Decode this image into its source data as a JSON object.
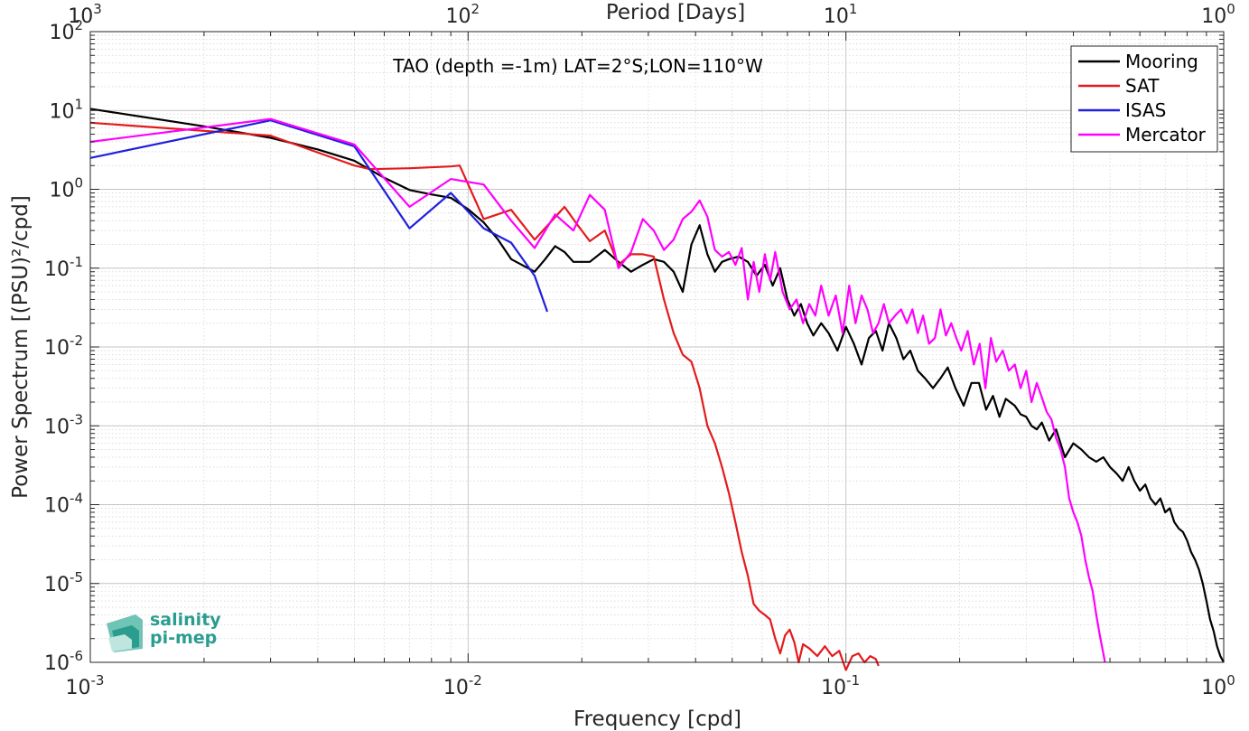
{
  "chart_data": {
    "type": "line",
    "title": "TAO (depth =-1m) LAT=2°S;LON=110°W",
    "xlabel": "Frequency [cpd]",
    "ylabel": "Power Spectrum [(PSU)²/cpd]",
    "top_xlabel": "Period [Days]",
    "x_scale": "log",
    "y_scale": "log",
    "xlim": [
      0.001,
      1
    ],
    "ylim": [
      1e-06,
      100
    ],
    "grid": true,
    "minor_grid": true,
    "legend_position": "top-right",
    "x_ticks": [
      {
        "base": "10",
        "exp": "-3"
      },
      {
        "base": "10",
        "exp": "-2"
      },
      {
        "base": "10",
        "exp": "-1"
      },
      {
        "base": "10",
        "exp": "0"
      }
    ],
    "top_ticks": [
      {
        "base": "10",
        "exp": "3"
      },
      {
        "base": "10",
        "exp": "2"
      },
      {
        "base": "10",
        "exp": "1"
      },
      {
        "base": "10",
        "exp": "0"
      }
    ],
    "y_ticks": [
      {
        "base": "10",
        "exp": "2"
      },
      {
        "base": "10",
        "exp": "1"
      },
      {
        "base": "10",
        "exp": "0"
      },
      {
        "base": "10",
        "exp": "-1"
      },
      {
        "base": "10",
        "exp": "-2"
      },
      {
        "base": "10",
        "exp": "-3"
      },
      {
        "base": "10",
        "exp": "-4"
      },
      {
        "base": "10",
        "exp": "-5"
      },
      {
        "base": "10",
        "exp": "-6"
      }
    ],
    "series": [
      {
        "name": "Mooring",
        "color": "#000000",
        "points": [
          [
            0.001,
            10.5
          ],
          [
            0.002,
            6.3
          ],
          [
            0.003,
            4.5
          ],
          [
            0.004,
            3.2
          ],
          [
            0.005,
            2.3
          ],
          [
            0.006,
            1.4
          ],
          [
            0.007,
            0.98
          ],
          [
            0.008,
            0.86
          ],
          [
            0.009,
            0.78
          ],
          [
            0.01,
            0.56
          ],
          [
            0.011,
            0.38
          ],
          [
            0.012,
            0.23
          ],
          [
            0.013,
            0.13
          ],
          [
            0.015,
            0.09
          ],
          [
            0.016,
            0.13
          ],
          [
            0.017,
            0.19
          ],
          [
            0.018,
            0.16
          ],
          [
            0.019,
            0.12
          ],
          [
            0.021,
            0.12
          ],
          [
            0.023,
            0.17
          ],
          [
            0.025,
            0.12
          ],
          [
            0.027,
            0.09
          ],
          [
            0.029,
            0.11
          ],
          [
            0.031,
            0.13
          ],
          [
            0.033,
            0.12
          ],
          [
            0.035,
            0.09
          ],
          [
            0.037,
            0.05
          ],
          [
            0.039,
            0.2
          ],
          [
            0.041,
            0.35
          ],
          [
            0.043,
            0.15
          ],
          [
            0.045,
            0.09
          ],
          [
            0.047,
            0.12
          ],
          [
            0.049,
            0.13
          ],
          [
            0.052,
            0.14
          ],
          [
            0.055,
            0.12
          ],
          [
            0.058,
            0.08
          ],
          [
            0.061,
            0.11
          ],
          [
            0.064,
            0.06
          ],
          [
            0.067,
            0.1
          ],
          [
            0.07,
            0.04
          ],
          [
            0.073,
            0.025
          ],
          [
            0.076,
            0.035
          ],
          [
            0.079,
            0.02
          ],
          [
            0.082,
            0.014
          ],
          [
            0.086,
            0.02
          ],
          [
            0.09,
            0.015
          ],
          [
            0.095,
            0.009
          ],
          [
            0.1,
            0.018
          ],
          [
            0.105,
            0.011
          ],
          [
            0.11,
            0.006
          ],
          [
            0.115,
            0.013
          ],
          [
            0.12,
            0.016
          ],
          [
            0.125,
            0.009
          ],
          [
            0.13,
            0.02
          ],
          [
            0.136,
            0.013
          ],
          [
            0.142,
            0.007
          ],
          [
            0.148,
            0.009
          ],
          [
            0.155,
            0.005
          ],
          [
            0.162,
            0.004
          ],
          [
            0.17,
            0.003
          ],
          [
            0.178,
            0.004
          ],
          [
            0.186,
            0.0055
          ],
          [
            0.195,
            0.003
          ],
          [
            0.205,
            0.0018
          ],
          [
            0.215,
            0.0035
          ],
          [
            0.225,
            0.0035
          ],
          [
            0.235,
            0.0016
          ],
          [
            0.245,
            0.0024
          ],
          [
            0.255,
            0.0013
          ],
          [
            0.265,
            0.0022
          ],
          [
            0.28,
            0.0018
          ],
          [
            0.29,
            0.0014
          ],
          [
            0.3,
            0.0013
          ],
          [
            0.31,
            0.001
          ],
          [
            0.32,
            0.0009
          ],
          [
            0.33,
            0.0011
          ],
          [
            0.345,
            0.00065
          ],
          [
            0.36,
            0.0009
          ],
          [
            0.38,
            0.0004
          ],
          [
            0.4,
            0.0006
          ],
          [
            0.42,
            0.0005
          ],
          [
            0.44,
            0.0004
          ],
          [
            0.46,
            0.00035
          ],
          [
            0.48,
            0.0004
          ],
          [
            0.5,
            0.0003
          ],
          [
            0.52,
            0.00025
          ],
          [
            0.54,
            0.0002
          ],
          [
            0.56,
            0.0003
          ],
          [
            0.58,
            0.0002
          ],
          [
            0.6,
            0.00015
          ],
          [
            0.62,
            0.00018
          ],
          [
            0.64,
            0.00012
          ],
          [
            0.66,
            0.0001
          ],
          [
            0.68,
            0.00012
          ],
          [
            0.7,
            8e-05
          ],
          [
            0.72,
            9e-05
          ],
          [
            0.74,
            6e-05
          ],
          [
            0.76,
            5e-05
          ],
          [
            0.78,
            4.5e-05
          ],
          [
            0.8,
            3.5e-05
          ],
          [
            0.82,
            2.5e-05
          ],
          [
            0.84,
            2e-05
          ],
          [
            0.86,
            1.5e-05
          ],
          [
            0.88,
            1e-05
          ],
          [
            0.9,
            6e-06
          ],
          [
            0.92,
            3.5e-06
          ],
          [
            0.94,
            2.5e-06
          ],
          [
            0.96,
            1.6e-06
          ],
          [
            0.98,
            1.2e-06
          ],
          [
            1.0,
            1e-06
          ]
        ]
      },
      {
        "name": "SAT",
        "color": "#e41a1c",
        "points": [
          [
            0.001,
            7.0
          ],
          [
            0.003,
            4.8
          ],
          [
            0.005,
            2.0
          ],
          [
            0.0055,
            1.8
          ],
          [
            0.007,
            1.85
          ],
          [
            0.009,
            1.95
          ],
          [
            0.0095,
            2.0
          ],
          [
            0.011,
            0.42
          ],
          [
            0.013,
            0.55
          ],
          [
            0.015,
            0.23
          ],
          [
            0.0165,
            0.38
          ],
          [
            0.018,
            0.6
          ],
          [
            0.0195,
            0.35
          ],
          [
            0.021,
            0.22
          ],
          [
            0.023,
            0.3
          ],
          [
            0.025,
            0.11
          ],
          [
            0.027,
            0.15
          ],
          [
            0.029,
            0.15
          ],
          [
            0.031,
            0.14
          ],
          [
            0.033,
            0.04
          ],
          [
            0.035,
            0.015
          ],
          [
            0.037,
            0.008
          ],
          [
            0.039,
            0.0065
          ],
          [
            0.041,
            0.003
          ],
          [
            0.043,
            0.001
          ],
          [
            0.045,
            0.0006
          ],
          [
            0.047,
            0.0003
          ],
          [
            0.049,
            0.00014
          ],
          [
            0.051,
            6e-05
          ],
          [
            0.053,
            2.5e-05
          ],
          [
            0.055,
            1.25e-05
          ],
          [
            0.057,
            5.5e-06
          ],
          [
            0.059,
            4.5e-06
          ],
          [
            0.061,
            4e-06
          ],
          [
            0.063,
            3.5e-06
          ],
          [
            0.065,
            2e-06
          ],
          [
            0.067,
            1.3e-06
          ],
          [
            0.069,
            2.2e-06
          ],
          [
            0.071,
            2.6e-06
          ],
          [
            0.073,
            1.8e-06
          ],
          [
            0.075,
            1e-06
          ],
          [
            0.077,
            1.7e-06
          ],
          [
            0.08,
            1.5e-06
          ],
          [
            0.084,
            1.2e-06
          ],
          [
            0.088,
            1.6e-06
          ],
          [
            0.092,
            1.2e-06
          ],
          [
            0.096,
            1.4e-06
          ],
          [
            0.1,
            8e-07
          ],
          [
            0.104,
            1.2e-06
          ],
          [
            0.108,
            1.3e-06
          ],
          [
            0.112,
            1e-06
          ],
          [
            0.116,
            1.2e-06
          ],
          [
            0.12,
            1.1e-06
          ],
          [
            0.122,
            9e-07
          ]
        ]
      },
      {
        "name": "ISAS",
        "color": "#1f1fdd",
        "points": [
          [
            0.001,
            2.5
          ],
          [
            0.003,
            7.5
          ],
          [
            0.005,
            3.5
          ],
          [
            0.007,
            0.32
          ],
          [
            0.009,
            0.9
          ],
          [
            0.011,
            0.32
          ],
          [
            0.013,
            0.21
          ],
          [
            0.015,
            0.08
          ],
          [
            0.0162,
            0.028
          ]
        ]
      },
      {
        "name": "Mercator",
        "color": "#ff00ff",
        "points": [
          [
            0.001,
            4.0
          ],
          [
            0.003,
            7.8
          ],
          [
            0.005,
            3.7
          ],
          [
            0.007,
            0.6
          ],
          [
            0.009,
            1.35
          ],
          [
            0.011,
            1.15
          ],
          [
            0.013,
            0.4
          ],
          [
            0.015,
            0.18
          ],
          [
            0.017,
            0.48
          ],
          [
            0.019,
            0.3
          ],
          [
            0.021,
            0.85
          ],
          [
            0.023,
            0.55
          ],
          [
            0.025,
            0.1
          ],
          [
            0.027,
            0.16
          ],
          [
            0.029,
            0.42
          ],
          [
            0.031,
            0.3
          ],
          [
            0.033,
            0.17
          ],
          [
            0.035,
            0.23
          ],
          [
            0.037,
            0.42
          ],
          [
            0.039,
            0.52
          ],
          [
            0.041,
            0.72
          ],
          [
            0.043,
            0.45
          ],
          [
            0.045,
            0.17
          ],
          [
            0.047,
            0.14
          ],
          [
            0.049,
            0.16
          ],
          [
            0.051,
            0.11
          ],
          [
            0.053,
            0.18
          ],
          [
            0.055,
            0.04
          ],
          [
            0.057,
            0.12
          ],
          [
            0.059,
            0.05
          ],
          [
            0.061,
            0.15
          ],
          [
            0.063,
            0.07
          ],
          [
            0.065,
            0.16
          ],
          [
            0.068,
            0.05
          ],
          [
            0.071,
            0.03
          ],
          [
            0.074,
            0.04
          ],
          [
            0.077,
            0.02
          ],
          [
            0.08,
            0.035
          ],
          [
            0.083,
            0.025
          ],
          [
            0.086,
            0.06
          ],
          [
            0.09,
            0.025
          ],
          [
            0.094,
            0.045
          ],
          [
            0.098,
            0.015
          ],
          [
            0.102,
            0.06
          ],
          [
            0.106,
            0.02
          ],
          [
            0.11,
            0.045
          ],
          [
            0.114,
            0.03
          ],
          [
            0.118,
            0.015
          ],
          [
            0.122,
            0.02
          ],
          [
            0.126,
            0.035
          ],
          [
            0.13,
            0.02
          ],
          [
            0.135,
            0.025
          ],
          [
            0.14,
            0.03
          ],
          [
            0.145,
            0.02
          ],
          [
            0.15,
            0.03
          ],
          [
            0.155,
            0.015
          ],
          [
            0.16,
            0.025
          ],
          [
            0.166,
            0.011
          ],
          [
            0.172,
            0.013
          ],
          [
            0.178,
            0.03
          ],
          [
            0.184,
            0.014
          ],
          [
            0.19,
            0.02
          ],
          [
            0.196,
            0.013
          ],
          [
            0.202,
            0.009
          ],
          [
            0.21,
            0.016
          ],
          [
            0.218,
            0.006
          ],
          [
            0.226,
            0.011
          ],
          [
            0.234,
            0.003
          ],
          [
            0.242,
            0.013
          ],
          [
            0.25,
            0.0065
          ],
          [
            0.26,
            0.009
          ],
          [
            0.27,
            0.005
          ],
          [
            0.28,
            0.006
          ],
          [
            0.29,
            0.003
          ],
          [
            0.3,
            0.005
          ],
          [
            0.31,
            0.002
          ],
          [
            0.32,
            0.0035
          ],
          [
            0.33,
            0.0023
          ],
          [
            0.34,
            0.0015
          ],
          [
            0.35,
            0.0012
          ],
          [
            0.36,
            0.0007
          ],
          [
            0.37,
            0.0005
          ],
          [
            0.38,
            0.0003
          ],
          [
            0.39,
            0.00012
          ],
          [
            0.4,
            8e-05
          ],
          [
            0.41,
            6e-05
          ],
          [
            0.42,
            4e-05
          ],
          [
            0.43,
            2e-05
          ],
          [
            0.44,
            1.2e-05
          ],
          [
            0.45,
            8e-06
          ],
          [
            0.46,
            4e-06
          ],
          [
            0.47,
            2.2e-06
          ],
          [
            0.48,
            1.3e-06
          ],
          [
            0.485,
            1e-06
          ]
        ]
      }
    ]
  },
  "logo": {
    "line1": "salinity",
    "line2": "pi-mep",
    "color": "#2a9d8f"
  }
}
